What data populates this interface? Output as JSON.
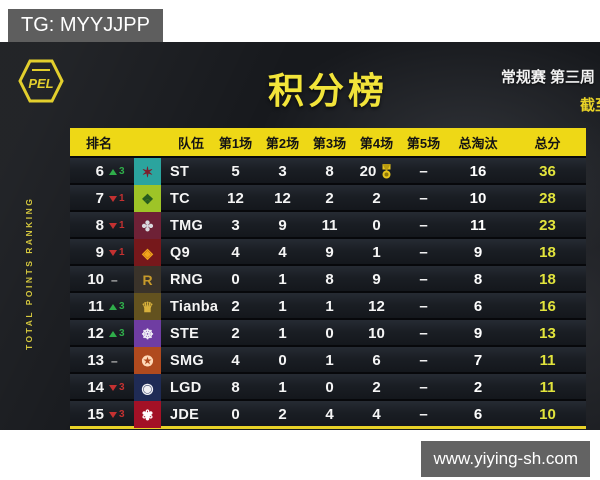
{
  "watermarks": {
    "top_left": "TG: MYYJJPP",
    "bottom_right": "www.yiying-sh.com"
  },
  "header": {
    "logo": "PEL",
    "side_label": "TOTAL POINTS RANKING",
    "title": "积分榜",
    "stage": "常规赛 第三周",
    "stage_note": "截至"
  },
  "colors": {
    "accent_yellow": "#eed816",
    "total_points_text": "#e2e43c",
    "rank_up": "#2fae4a",
    "rank_down": "#c43131"
  },
  "table": {
    "columns": [
      "排名",
      "队伍",
      "第1场",
      "第2场",
      "第3场",
      "第4场",
      "第5场",
      "总淘汰",
      "总分"
    ],
    "rows": [
      {
        "rank": "6",
        "change": "up",
        "change_amount": "3",
        "team": "ST",
        "tile_color": "#2ba49e",
        "glyph": "✶",
        "glyph_color": "#7e1d2c",
        "matches": [
          "5",
          "3",
          "8",
          "20",
          "–"
        ],
        "medal_match": 3,
        "elims": "16",
        "total": "36"
      },
      {
        "rank": "7",
        "change": "down",
        "change_amount": "1",
        "team": "TC",
        "tile_color": "#9ec427",
        "glyph": "❖",
        "glyph_color": "#275c1e",
        "matches": [
          "12",
          "12",
          "2",
          "2",
          "–"
        ],
        "medal_match": null,
        "elims": "10",
        "total": "28"
      },
      {
        "rank": "8",
        "change": "down",
        "change_amount": "1",
        "team": "TMG",
        "tile_color": "#6e2136",
        "glyph": "✤",
        "glyph_color": "#d9d9de",
        "matches": [
          "3",
          "9",
          "11",
          "0",
          "–"
        ],
        "medal_match": null,
        "elims": "11",
        "total": "23"
      },
      {
        "rank": "9",
        "change": "down",
        "change_amount": "1",
        "team": "Q9",
        "tile_color": "#76181b",
        "glyph": "◈",
        "glyph_color": "#f2a71b",
        "matches": [
          "4",
          "4",
          "9",
          "1",
          "–"
        ],
        "medal_match": null,
        "elims": "9",
        "total": "18"
      },
      {
        "rank": "10",
        "change": "same",
        "change_amount": "",
        "team": "RNG",
        "tile_color": "#3a332a",
        "glyph": "R",
        "glyph_color": "#c79a2a",
        "matches": [
          "0",
          "1",
          "8",
          "9",
          "–"
        ],
        "medal_match": null,
        "elims": "8",
        "total": "18"
      },
      {
        "rank": "11",
        "change": "up",
        "change_amount": "3",
        "team": "Tianba",
        "tile_color": "#63521f",
        "glyph": "♛",
        "glyph_color": "#d8b13c",
        "matches": [
          "2",
          "1",
          "1",
          "12",
          "–"
        ],
        "medal_match": null,
        "elims": "6",
        "total": "16"
      },
      {
        "rank": "12",
        "change": "up",
        "change_amount": "3",
        "team": "STE",
        "tile_color": "#6f3da2",
        "glyph": "☸",
        "glyph_color": "#f0eef5",
        "matches": [
          "2",
          "1",
          "0",
          "10",
          "–"
        ],
        "medal_match": null,
        "elims": "9",
        "total": "13"
      },
      {
        "rank": "13",
        "change": "same",
        "change_amount": "",
        "team": "SMG",
        "tile_color": "#b04a1e",
        "glyph": "✪",
        "glyph_color": "#ffd9b8",
        "matches": [
          "4",
          "0",
          "1",
          "6",
          "–"
        ],
        "medal_match": null,
        "elims": "7",
        "total": "11"
      },
      {
        "rank": "14",
        "change": "down",
        "change_amount": "3",
        "team": "LGD",
        "tile_color": "#1f2b55",
        "glyph": "◉",
        "glyph_color": "#f0f0f5",
        "matches": [
          "8",
          "1",
          "0",
          "2",
          "–"
        ],
        "medal_match": null,
        "elims": "2",
        "total": "11"
      },
      {
        "rank": "15",
        "change": "down",
        "change_amount": "3",
        "team": "JDE",
        "tile_color": "#a31126",
        "glyph": "✾",
        "glyph_color": "#ffffff",
        "matches": [
          "0",
          "2",
          "4",
          "4",
          "–"
        ],
        "medal_match": null,
        "elims": "6",
        "total": "10"
      }
    ]
  }
}
